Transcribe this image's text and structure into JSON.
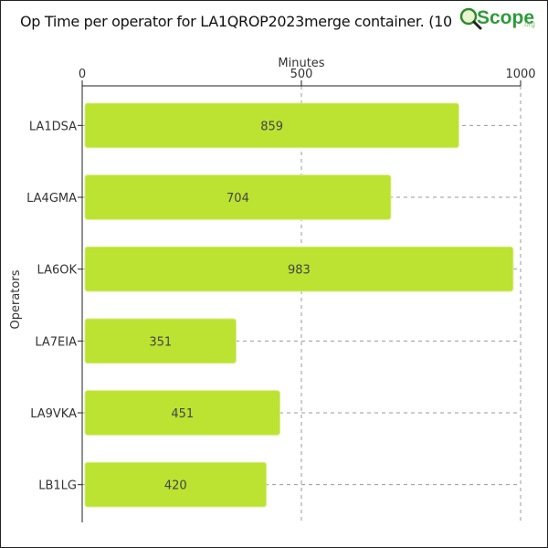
{
  "chart_data": {
    "type": "bar",
    "orientation": "horizontal",
    "title": "Op Time per operator for LA1QROP2023merge container. (10 mir",
    "xlabel": "Minutes",
    "ylabel": "Operators",
    "categories": [
      "LA1DSA",
      "LA4GMA",
      "LA6OK",
      "LA7EIA",
      "LA9VKA",
      "LB1LG"
    ],
    "values": [
      859,
      704,
      983,
      351,
      451,
      420
    ],
    "data_labels": [
      "859",
      "704",
      "983",
      "351",
      "451",
      "420"
    ],
    "xlim": [
      0,
      1000
    ],
    "xticks": [
      0,
      500,
      1000
    ],
    "xtick_labels": [
      "0",
      "500",
      "1000"
    ],
    "x_axis_position": "top",
    "grid": true,
    "bar_color": "#bce232"
  },
  "logo": {
    "text": "Scope",
    "small_text": ".org"
  }
}
